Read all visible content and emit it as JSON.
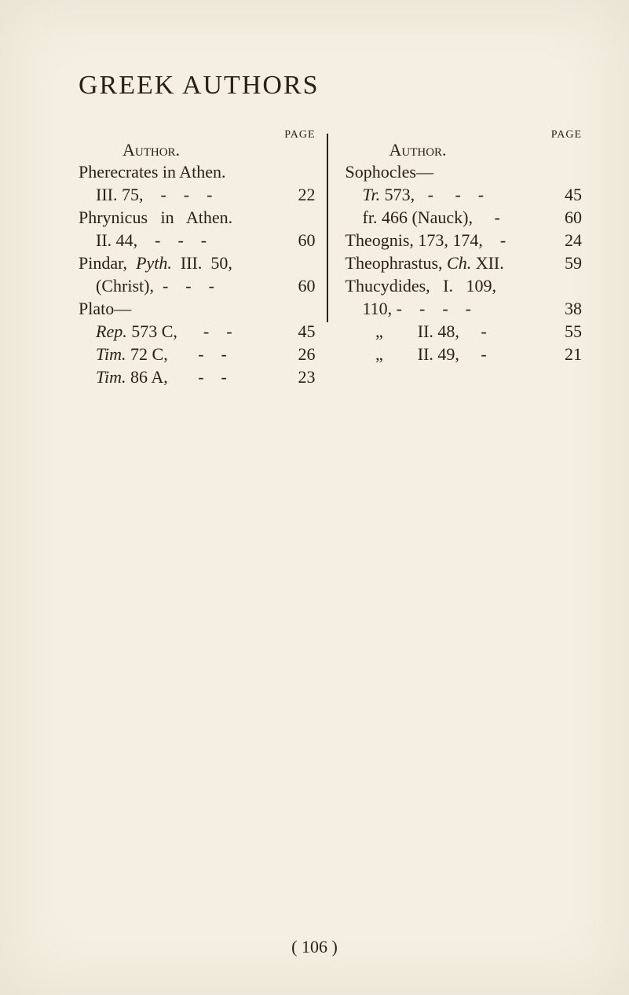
{
  "title": "GREEK AUTHORS",
  "page_label": "PAGE",
  "author_label": "Author.",
  "left": [
    {
      "pre": "Pherecrates in Athen.",
      "ital": "",
      "post": "",
      "page": ""
    },
    {
      "pre": "    III. 75,    -    -    -",
      "ital": "",
      "post": "",
      "page": "22"
    },
    {
      "pre": "Phrynicus   in   Athen.",
      "ital": "",
      "post": "",
      "page": ""
    },
    {
      "pre": "    II. 44,    -    -    -",
      "ital": "",
      "post": "",
      "page": "60"
    },
    {
      "pre": "Pindar,  ",
      "ital": "Pyth.",
      "post": "  III.  50,",
      "page": ""
    },
    {
      "pre": "    (Christ),  -    -    -",
      "ital": "",
      "post": "",
      "page": "60"
    },
    {
      "pre": "Plato—",
      "ital": "",
      "post": "",
      "page": ""
    },
    {
      "pre": "    ",
      "ital": "Rep.",
      "post": " 573 C,      -    -",
      "page": "45"
    },
    {
      "pre": "    ",
      "ital": "Tim.",
      "post": " 72 C,       -    -",
      "page": "26"
    },
    {
      "pre": "    ",
      "ital": "Tim.",
      "post": " 86 A,       -    -",
      "page": "23"
    }
  ],
  "right": [
    {
      "pre": "Sophocles—",
      "ital": "",
      "post": "",
      "page": ""
    },
    {
      "pre": "    ",
      "ital": "Tr.",
      "post": " 573,   -     -    -",
      "page": "45"
    },
    {
      "pre": "    fr. 466 (Nauck),     -",
      "ital": "",
      "post": "",
      "page": "60"
    },
    {
      "pre": "Theognis, 173, 174,    -",
      "ital": "",
      "post": "",
      "page": "24"
    },
    {
      "pre": "Theophrastus, ",
      "ital": "Ch.",
      "post": " XII.",
      "page": "59"
    },
    {
      "pre": "Thucydides,   I.   109,",
      "ital": "",
      "post": "",
      "page": ""
    },
    {
      "pre": "    110, -    -    -    -",
      "ital": "",
      "post": "",
      "page": "38"
    },
    {
      "pre": "       „        II. 48,     -",
      "ital": "",
      "post": "",
      "page": "55"
    },
    {
      "pre": "       „        II. 49,     -",
      "ital": "",
      "post": "",
      "page": "21"
    }
  ],
  "footer": "(  106  )"
}
